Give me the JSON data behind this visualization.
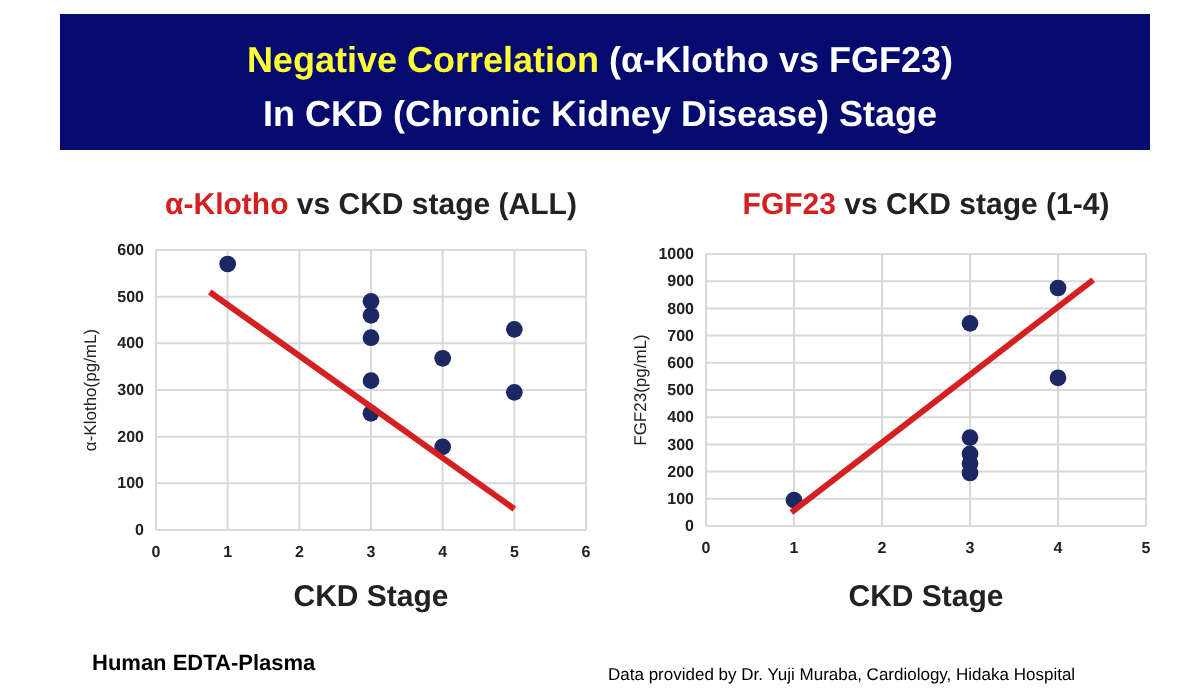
{
  "chart_data": [
    {
      "type": "other",
      "title": "Negative Correlation (α-Klotho vs FGF23)",
      "subtitle": "In CKD (Chronic Kidney Disease) Stage",
      "annotations": [
        "Human EDTA-Plasma",
        "Data provided by Dr. Yuji Muraba, Cardiology, Hidaka Hospital"
      ]
    },
    {
      "type": "scatter",
      "title": "α-Klotho vs CKD stage (ALL)",
      "xlabel": "CKD Stage",
      "ylabel": "α-Klotho(pg/mL)",
      "xlim": [
        0,
        6
      ],
      "xticks": [
        0,
        1,
        2,
        3,
        4,
        5,
        6
      ],
      "ylim": [
        0,
        600
      ],
      "yticks": [
        0,
        100,
        200,
        300,
        400,
        500,
        600
      ],
      "grid": true,
      "series": [
        {
          "type": "scatter",
          "marker": "circle",
          "color": "#1c2864",
          "x": [
            1,
            3,
            3,
            3,
            3,
            3,
            4,
            4,
            5,
            5
          ],
          "values": [
            570,
            490,
            460,
            412,
            320,
            250,
            368,
            178,
            430,
            295
          ]
        },
        {
          "type": "line",
          "marker": "none",
          "color": "#d42020",
          "x": [
            0.75,
            5
          ],
          "values": [
            510,
            45
          ]
        }
      ]
    },
    {
      "type": "scatter",
      "title": "FGF23 vs CKD stage (1-4)",
      "xlabel": "CKD Stage",
      "ylabel": "FGF23(pg/mL)",
      "xlim": [
        0,
        5
      ],
      "xticks": [
        0,
        1,
        2,
        3,
        4,
        5
      ],
      "ylim": [
        0,
        1000
      ],
      "yticks": [
        0,
        100,
        200,
        300,
        400,
        500,
        600,
        700,
        800,
        900,
        1000
      ],
      "grid": true,
      "series": [
        {
          "type": "scatter",
          "marker": "circle",
          "color": "#1c2864",
          "x": [
            1,
            3,
            3,
            3,
            3,
            3,
            4,
            4
          ],
          "values": [
            95,
            745,
            325,
            265,
            230,
            195,
            875,
            545
          ]
        },
        {
          "type": "line",
          "marker": "none",
          "color": "#d42020",
          "x": [
            0.97,
            4.4
          ],
          "values": [
            50,
            905
          ]
        }
      ]
    }
  ]
}
